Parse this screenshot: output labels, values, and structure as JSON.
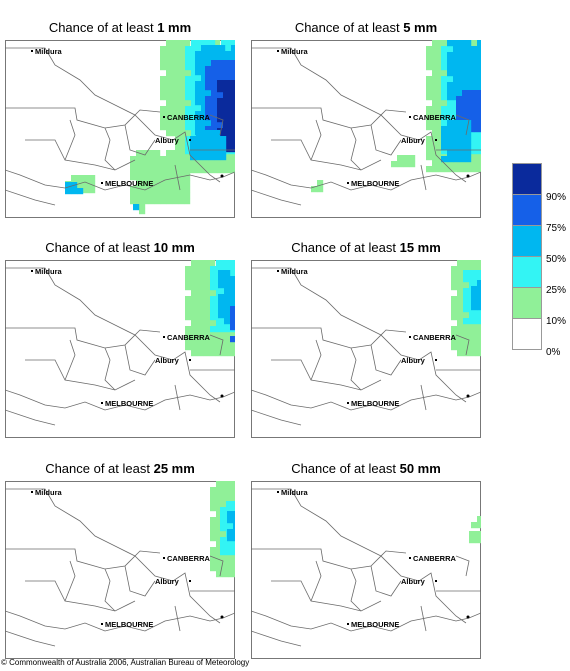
{
  "panels": [
    {
      "prefix": "Chance of at least ",
      "amount": "1 mm"
    },
    {
      "prefix": "Chance of at least ",
      "amount": "5 mm"
    },
    {
      "prefix": "Chance of at least ",
      "amount": "10 mm"
    },
    {
      "prefix": "Chance of at least ",
      "amount": "15 mm"
    },
    {
      "prefix": "Chance of at least ",
      "amount": "25 mm"
    },
    {
      "prefix": "Chance of at least ",
      "amount": "50 mm"
    }
  ],
  "towns": {
    "mildura": "Mildura",
    "canberra": "CANBERRA",
    "albury": "Albury",
    "melbourne": "MELBOURNE"
  },
  "legend": {
    "labels": [
      "90%",
      "75%",
      "50%",
      "25%",
      "10%",
      "0%"
    ],
    "colors": [
      "#0a2a9c",
      "#1560e8",
      "#00b7f0",
      "#33f4f4",
      "#90f098",
      "#ffffff"
    ]
  },
  "copyright": "© Commonwealth of Australia 2006, Australian Bureau of Meteorology"
}
